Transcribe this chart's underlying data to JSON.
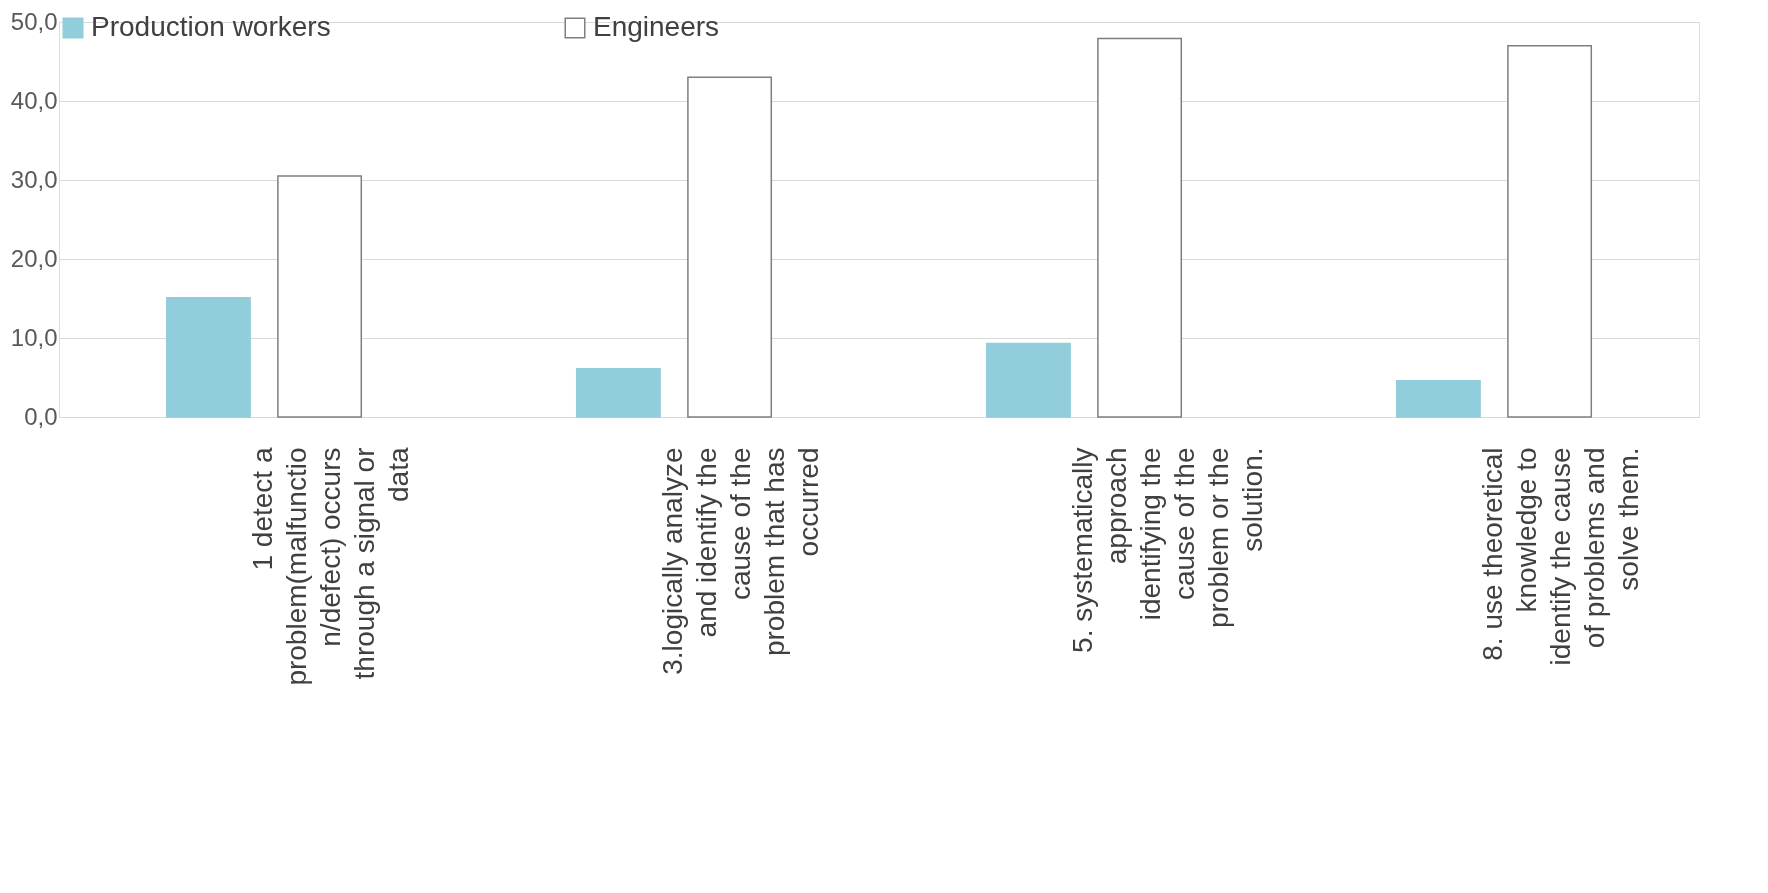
{
  "chart_data": {
    "type": "bar",
    "categories": [
      "1 detect a\nproblem(malfunctio\nn/defect) occurs\nthrough a signal or\ndata",
      "3.logically analyze\nand identify the\ncause of the\nproblem that has\noccurred",
      "5.  systematically\napproach\nidentifying the\ncause of the\nproblem or the\nsolution.",
      "8. use theoretical\nknowledge to\nidentify the cause\nof problems and\nsolve them."
    ],
    "series": [
      {
        "name": "Production workers",
        "color": "#92cddc",
        "values": [
          15.1,
          6.1,
          9.3,
          4.6
        ]
      },
      {
        "name": "Engineers",
        "color": "#ffffff",
        "values": [
          30.5,
          43.0,
          47.9,
          47.0
        ]
      }
    ],
    "ylim": [
      0,
      50
    ],
    "yticks": [
      {
        "value": 0,
        "label": "0,0"
      },
      {
        "value": 10,
        "label": "10,0"
      },
      {
        "value": 20,
        "label": "20,0"
      },
      {
        "value": 30,
        "label": "30,0"
      },
      {
        "value": 40,
        "label": "40,0"
      },
      {
        "value": 50,
        "label": "50,0"
      }
    ],
    "grid": "y",
    "legend": "top"
  }
}
